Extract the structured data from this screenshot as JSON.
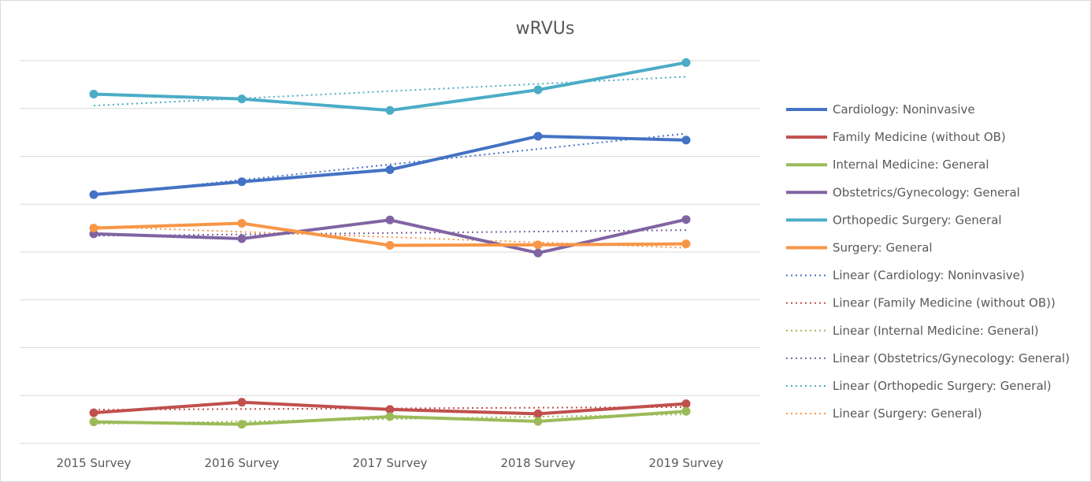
{
  "chart_data": {
    "type": "line",
    "title": "wRVUs",
    "categories": [
      "2015 Survey",
      "2016 Survey",
      "2017 Survey",
      "2018 Survey",
      "2019 Survey"
    ],
    "ylim": [
      0,
      8
    ],
    "grid": true,
    "y_tick_labels_shown": false,
    "legend_position": "right",
    "series": [
      {
        "name": "Cardiology: Noninvasive",
        "color": "#4472C4",
        "values": [
          5.2,
          5.47,
          5.72,
          6.42,
          6.34
        ]
      },
      {
        "name": "Family Medicine (without OB)",
        "color": "#C0504D",
        "values": [
          0.64,
          0.86,
          0.71,
          0.62,
          0.83
        ]
      },
      {
        "name": "Internal Medicine: General",
        "color": "#9BBB59",
        "values": [
          0.45,
          0.4,
          0.56,
          0.46,
          0.67
        ]
      },
      {
        "name": "Obstetrics/Gynecology: General",
        "color": "#8064A2",
        "values": [
          4.38,
          4.28,
          4.67,
          3.98,
          4.68
        ]
      },
      {
        "name": "Orthopedic Surgery: General",
        "color": "#4BACC6",
        "values": [
          7.3,
          7.2,
          6.96,
          7.39,
          7.96
        ]
      },
      {
        "name": "Surgery: General",
        "color": "#F79646",
        "values": [
          4.5,
          4.6,
          4.14,
          4.15,
          4.17
        ]
      }
    ],
    "trendlines": [
      {
        "name": "Linear (Cardiology: Noninvasive)",
        "color": "#4472C4"
      },
      {
        "name": "Linear (Family Medicine (without OB))",
        "color": "#C0504D"
      },
      {
        "name": "Linear (Internal Medicine: General)",
        "color": "#9BBB59"
      },
      {
        "name": "Linear (Obstetrics/Gynecology: General)",
        "color": "#8064A2"
      },
      {
        "name": "Linear (Orthopedic Surgery: General)",
        "color": "#4BACC6"
      },
      {
        "name": "Linear (Surgery: General)",
        "color": "#F79646"
      }
    ]
  }
}
